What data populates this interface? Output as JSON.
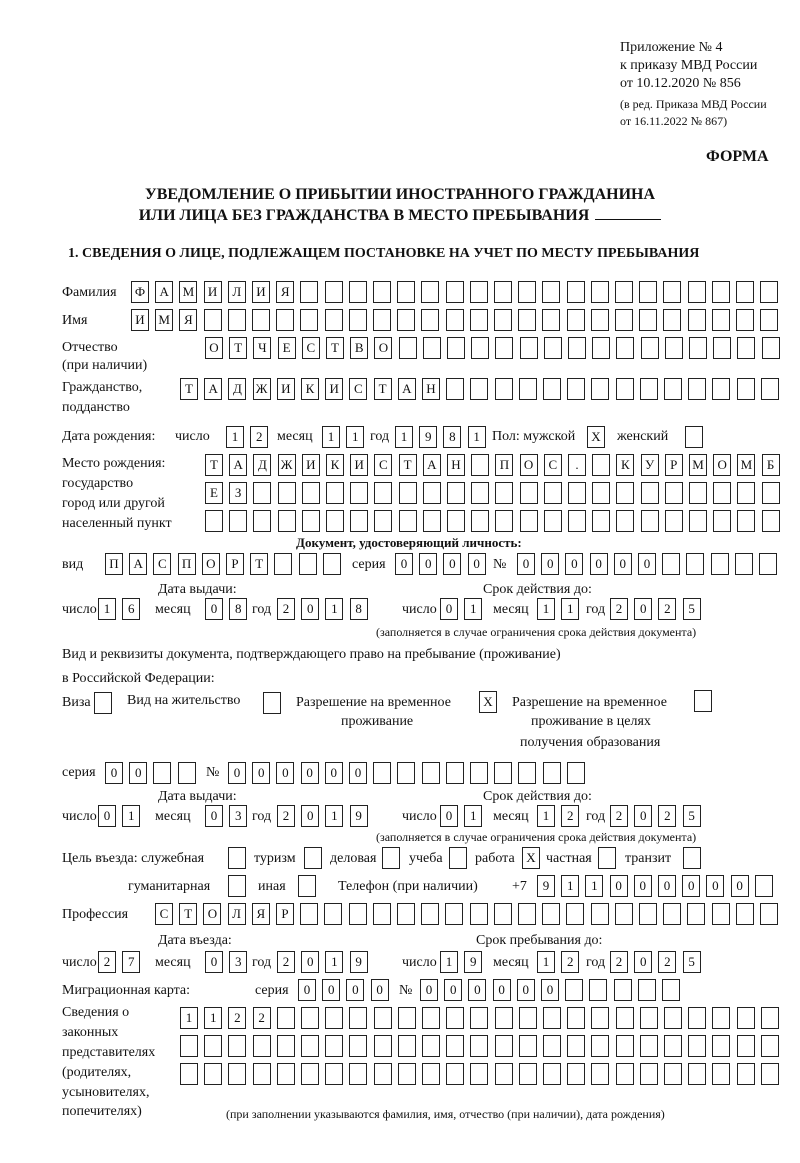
{
  "header": {
    "appendix": "Приложение № 4",
    "order": "к приказу МВД России",
    "order_date": "от 10.12.2020 № 856",
    "revision1": "(в ред. Приказа МВД России",
    "revision2": "от 16.11.2022 № 867)",
    "form_label": "ФОРМА"
  },
  "title": {
    "line1": "УВЕДОМЛЕНИЕ О ПРИБЫТИИ ИНОСТРАННОГО ГРАЖДАНИНА",
    "line2": "ИЛИ ЛИЦА БЕЗ ГРАЖДАНСТВА В МЕСТО ПРЕБЫВАНИЯ",
    "section1": "1. СВЕДЕНИЯ О ЛИЦЕ, ПОДЛЕЖАЩЕМ ПОСТАНОВКЕ НА УЧЕТ ПО МЕСТУ ПРЕБЫВАНИЯ"
  },
  "labels": {
    "surname": "Фамилия",
    "name": "Имя",
    "patronymic1": "Отчество",
    "patronymic2": "(при наличии)",
    "citizenship1": "Гражданство,",
    "citizenship2": "подданство",
    "dob": "Дата рождения:",
    "day": "число",
    "month": "месяц",
    "year": "год",
    "sex_male": "Пол: мужской",
    "sex_female": "женский",
    "pob1": "Место рождения:",
    "pob2": "государство",
    "pob3": "город или другой",
    "pob4": "населенный пункт",
    "id_doc": "Документ, удостоверяющий личность:",
    "kind": "вид",
    "series": "серия",
    "number": "№",
    "issue_date": "Дата выдачи:",
    "valid_until": "Срок действия до:",
    "validity_note": "(заполняется в случае ограничения срока действия документа)",
    "permit_doc1": "Вид и реквизиты документа, подтверждающего право на пребывание (проживание)",
    "permit_doc2": "в Российской Федерации:",
    "visa": "Виза",
    "residence": "Вид на жительство",
    "temp_res1": "Разрешение на временное",
    "temp_res2": "проживание",
    "temp_edu1": "Разрешение на временное",
    "temp_edu2": "проживание в целях",
    "temp_edu3": "получения образования",
    "purpose": "Цель въезда: служебная",
    "tourism": "туризм",
    "business": "деловая",
    "study": "учеба",
    "work": "работа",
    "private": "частная",
    "transit": "транзит",
    "humanitarian": "гуманитарная",
    "other": "иная",
    "phone": "Телефон (при наличии)",
    "phone_prefix": "+7",
    "profession": "Профессия",
    "entry_date": "Дата въезда:",
    "stay_until": "Срок пребывания до:",
    "migration_card": "Миграционная карта:",
    "reps1": "Сведения о",
    "reps2": "законных",
    "reps3": "представителях",
    "reps4": "(родителях,",
    "reps5": "усыновителях,",
    "reps6": "попечителях)",
    "reps_note": "(при заполнении указываются фамилия, имя, отчество (при наличии), дата рождения)"
  },
  "values": {
    "surname": "ФАМИЛИЯ",
    "name": "ИМЯ",
    "patronymic": "ОТЧЕСТВО",
    "citizenship": "ТАДЖИКИСТАН",
    "dob_day": "12",
    "dob_month": "11",
    "dob_year": "1981",
    "sex_male": "Х",
    "sex_female": "",
    "pob_line1": "ТАДЖИКИСТАН ПОС. КУРМОМБ",
    "pob_line2": "ЕЗ",
    "pob_line3": "",
    "id_kind": "ПАСПОРТ",
    "id_series": "0000",
    "id_number": "000000",
    "id_issue_day": "16",
    "id_issue_month": "08",
    "id_issue_year": "2018",
    "id_valid_day": "01",
    "id_valid_month": "11",
    "id_valid_year": "2025",
    "visa": "",
    "residence": "",
    "temp_res": "Х",
    "temp_edu": "",
    "permit_series": "00",
    "permit_number": "000000",
    "permit_issue_day": "01",
    "permit_issue_month": "03",
    "permit_issue_year": "2019",
    "permit_valid_day": "01",
    "permit_valid_month": "12",
    "permit_valid_year": "2025",
    "p_official": "",
    "p_tourism": "",
    "p_business": "",
    "p_study": "",
    "p_work": "Х",
    "p_private": "",
    "p_transit": "",
    "p_humanitarian": "",
    "p_other": "",
    "phone": "911000000",
    "profession": "СТОЛЯР",
    "entry_day": "27",
    "entry_month": "03",
    "entry_year": "2019",
    "stay_day": "19",
    "stay_month": "12",
    "stay_year": "2025",
    "mc_series": "0000",
    "mc_number": "000000",
    "reps_line1": "1122",
    "reps_line2": "",
    "reps_line3": ""
  }
}
